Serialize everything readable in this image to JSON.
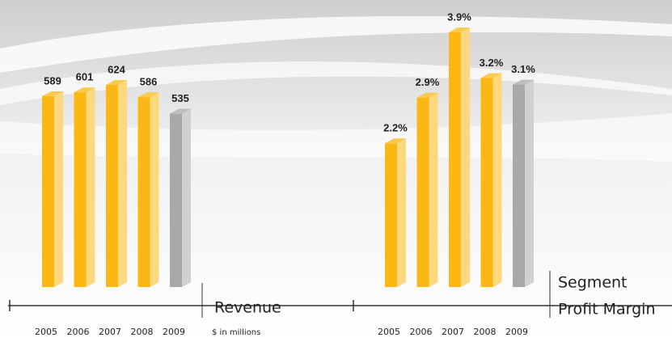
{
  "chart_data": [
    {
      "type": "bar",
      "title": [
        "Revenue"
      ],
      "note": "$ in millions",
      "categories": [
        "2005",
        "2006",
        "2007",
        "2008",
        "2009"
      ],
      "values": [
        589,
        601,
        624,
        586,
        535
      ],
      "colors": [
        "#fbb814",
        "#fbb814",
        "#fbb814",
        "#fbb814",
        "#a9a9a9"
      ]
    },
    {
      "type": "bar",
      "title": [
        "Segment",
        "Profit Margin"
      ],
      "categories": [
        "2005",
        "2006",
        "2007",
        "2008",
        "2009"
      ],
      "values": [
        2.2,
        2.9,
        3.9,
        3.2,
        3.1
      ],
      "value_labels": [
        "2.2%",
        "2.9%",
        "3.9%",
        "3.2%",
        "3.1%"
      ],
      "colors": [
        "#fbb814",
        "#fbb814",
        "#fbb814",
        "#fbb814",
        "#a9a9a9"
      ]
    }
  ]
}
